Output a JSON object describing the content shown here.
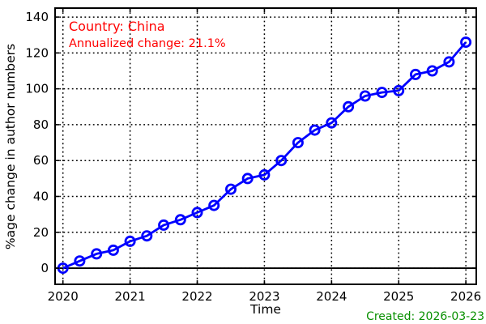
{
  "annotations": {
    "country": "Country: China",
    "annualized": "Annualized change: 21.1%",
    "created": "Created: 2026-03-23"
  },
  "colors": {
    "line": "#0000ff",
    "annotation": "#ff0000",
    "created": "#089000",
    "axis": "#000000",
    "background": "#ffffff"
  },
  "chart_data": {
    "type": "line",
    "title": "",
    "xlabel": "Time",
    "ylabel": "%age change in author numbers",
    "x_ticks": [
      2020,
      2021,
      2022,
      2023,
      2024,
      2025,
      2026
    ],
    "y_ticks": [
      0,
      20,
      40,
      60,
      80,
      100,
      120,
      140
    ],
    "xlim": [
      2019.883,
      2026.155
    ],
    "ylim": [
      -9,
      145
    ],
    "grid": "dotted",
    "legend": "none",
    "zero_line": true,
    "marker": "hollow-circle",
    "series": [
      {
        "name": "China",
        "color": "#0000ff",
        "x": [
          2020.0,
          2020.25,
          2020.5,
          2020.75,
          2021.0,
          2021.25,
          2021.5,
          2021.75,
          2022.0,
          2022.25,
          2022.5,
          2022.75,
          2023.0,
          2023.25,
          2023.5,
          2023.75,
          2024.0,
          2024.25,
          2024.5,
          2024.75,
          2025.0,
          2025.25,
          2025.5,
          2025.75,
          2026.0
        ],
        "values": [
          0,
          4,
          8,
          10,
          15,
          18,
          24,
          27,
          31,
          35,
          44,
          50,
          52,
          60,
          70,
          77,
          81,
          90,
          96,
          98,
          99,
          108,
          110,
          115,
          126
        ]
      }
    ]
  }
}
